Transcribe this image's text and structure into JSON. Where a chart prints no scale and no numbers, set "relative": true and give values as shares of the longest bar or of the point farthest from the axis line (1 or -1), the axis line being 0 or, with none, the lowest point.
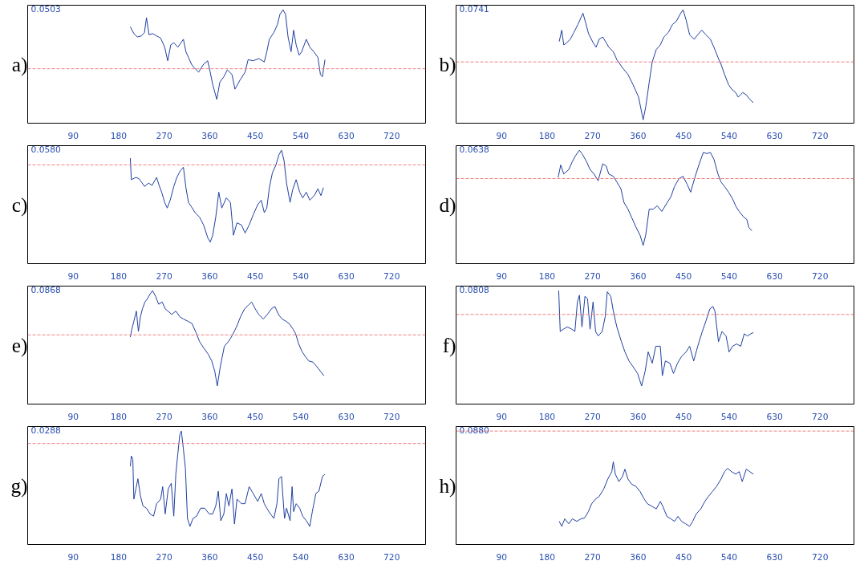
{
  "chart_data": [
    {
      "type": "line",
      "relative": true,
      "xlim": [
        0,
        787
      ],
      "xticks": [
        90,
        180,
        270,
        360,
        450,
        540,
        630,
        720
      ],
      "grid": false,
      "annotations": [
        "0.0503",
        "a)"
      ],
      "ref_lines": [
        {
          "axis": "y",
          "value": 0.48,
          "color": "#f08080",
          "line_style": "dashed"
        }
      ],
      "series": [
        {
          "color": "#1f3f9f",
          "x": [
            203,
            210,
            217,
            225,
            231,
            235,
            240,
            247,
            255,
            263,
            271,
            277,
            283,
            289,
            297,
            308,
            313,
            318,
            324,
            329,
            338,
            348,
            356,
            361,
            366,
            374,
            380,
            388,
            395,
            404,
            410,
            420,
            430,
            436,
            446,
            457,
            468,
            473,
            478,
            487,
            494,
            499,
            505,
            510,
            515,
            521,
            526,
            531,
            537,
            542,
            551,
            558,
            566,
            574,
            579,
            583,
            588
          ],
          "values": [
            0.85,
            0.79,
            0.76,
            0.77,
            0.8,
            0.93,
            0.78,
            0.79,
            0.77,
            0.75,
            0.67,
            0.55,
            0.69,
            0.71,
            0.67,
            0.74,
            0.63,
            0.58,
            0.52,
            0.49,
            0.45,
            0.52,
            0.55,
            0.45,
            0.34,
            0.21,
            0.36,
            0.41,
            0.47,
            0.43,
            0.3,
            0.38,
            0.45,
            0.56,
            0.55,
            0.57,
            0.54,
            0.63,
            0.74,
            0.8,
            0.87,
            0.96,
            1.0,
            0.96,
            0.76,
            0.63,
            0.82,
            0.69,
            0.6,
            0.63,
            0.74,
            0.67,
            0.63,
            0.58,
            0.43,
            0.41,
            0.56
          ]
        }
      ]
    },
    {
      "type": "line",
      "relative": true,
      "xlim": [
        0,
        787
      ],
      "xticks": [
        90,
        180,
        270,
        360,
        450,
        540,
        630,
        720
      ],
      "grid": false,
      "annotations": [
        "0.0741",
        "b)"
      ],
      "ref_lines": [
        {
          "axis": "y",
          "value": 0.54,
          "color": "#f08080",
          "line_style": "dashed"
        }
      ],
      "series": [
        {
          "color": "#1f3f9f",
          "x": [
            204,
            209,
            213,
            219,
            226,
            233,
            241,
            247,
            251,
            256,
            262,
            271,
            277,
            283,
            290,
            297,
            302,
            311,
            318,
            329,
            340,
            350,
            361,
            370,
            375,
            382,
            388,
            396,
            404,
            411,
            420,
            428,
            436,
            443,
            449,
            455,
            462,
            471,
            478,
            486,
            494,
            503,
            510,
            518,
            524,
            531,
            539,
            545,
            553,
            558,
            567,
            574,
            581,
            588
          ],
          "values": [
            0.72,
            0.82,
            0.69,
            0.71,
            0.74,
            0.8,
            0.87,
            0.93,
            0.97,
            0.89,
            0.79,
            0.71,
            0.67,
            0.74,
            0.76,
            0.71,
            0.67,
            0.63,
            0.56,
            0.49,
            0.43,
            0.34,
            0.23,
            0.03,
            0.14,
            0.36,
            0.54,
            0.65,
            0.69,
            0.76,
            0.8,
            0.87,
            0.9,
            0.96,
            1.0,
            0.91,
            0.78,
            0.74,
            0.78,
            0.82,
            0.78,
            0.74,
            0.67,
            0.58,
            0.52,
            0.43,
            0.34,
            0.3,
            0.27,
            0.23,
            0.27,
            0.25,
            0.21,
            0.18
          ]
        }
      ]
    },
    {
      "type": "line",
      "relative": true,
      "xlim": [
        0,
        787
      ],
      "xticks": [
        90,
        180,
        270,
        360,
        450,
        540,
        630,
        720
      ],
      "grid": false,
      "annotations": [
        "0.0580",
        "c)"
      ],
      "ref_lines": [
        {
          "axis": "y",
          "value": 0.87,
          "color": "#f08080",
          "line_style": "dashed"
        }
      ],
      "series": [
        {
          "color": "#1f3f9f",
          "x": [
            203,
            205,
            214,
            220,
            225,
            231,
            239,
            246,
            255,
            260,
            265,
            271,
            276,
            282,
            289,
            295,
            302,
            308,
            313,
            318,
            324,
            331,
            340,
            348,
            356,
            361,
            366,
            372,
            378,
            384,
            393,
            401,
            407,
            414,
            423,
            430,
            438,
            446,
            455,
            462,
            468,
            473,
            478,
            484,
            491,
            497,
            502,
            507,
            512,
            519,
            524,
            531,
            538,
            544,
            551,
            558,
            567,
            574,
            580,
            585
          ],
          "values": [
            0.93,
            0.74,
            0.76,
            0.75,
            0.72,
            0.68,
            0.71,
            0.69,
            0.76,
            0.69,
            0.63,
            0.54,
            0.49,
            0.56,
            0.68,
            0.76,
            0.82,
            0.85,
            0.67,
            0.54,
            0.5,
            0.45,
            0.41,
            0.34,
            0.23,
            0.19,
            0.25,
            0.41,
            0.63,
            0.49,
            0.58,
            0.54,
            0.25,
            0.36,
            0.34,
            0.27,
            0.34,
            0.43,
            0.52,
            0.56,
            0.45,
            0.49,
            0.67,
            0.8,
            0.87,
            0.96,
            1.0,
            0.91,
            0.71,
            0.54,
            0.65,
            0.74,
            0.63,
            0.58,
            0.63,
            0.56,
            0.6,
            0.66,
            0.6,
            0.67
          ]
        }
      ]
    },
    {
      "type": "line",
      "relative": true,
      "xlim": [
        0,
        787
      ],
      "xticks": [
        90,
        180,
        270,
        360,
        450,
        540,
        630,
        720
      ],
      "grid": false,
      "annotations": [
        "0.0638",
        "d)"
      ],
      "ref_lines": [
        {
          "axis": "y",
          "value": 0.75,
          "color": "#f08080",
          "line_style": "dashed"
        }
      ],
      "series": [
        {
          "color": "#1f3f9f",
          "x": [
            202,
            207,
            213,
            223,
            230,
            236,
            244,
            249,
            258,
            265,
            273,
            281,
            290,
            297,
            302,
            311,
            318,
            326,
            332,
            340,
            347,
            356,
            364,
            370,
            375,
            382,
            390,
            398,
            407,
            415,
            425,
            432,
            441,
            449,
            457,
            464,
            473,
            481,
            489,
            496,
            503,
            510,
            518,
            524,
            531,
            539,
            547,
            554,
            560,
            569,
            575,
            579,
            585
          ],
          "values": [
            0.76,
            0.87,
            0.79,
            0.83,
            0.9,
            0.95,
            1.0,
            0.97,
            0.9,
            0.83,
            0.79,
            0.73,
            0.88,
            0.86,
            0.79,
            0.77,
            0.72,
            0.66,
            0.54,
            0.48,
            0.41,
            0.32,
            0.25,
            0.16,
            0.25,
            0.48,
            0.48,
            0.51,
            0.46,
            0.52,
            0.59,
            0.68,
            0.75,
            0.77,
            0.7,
            0.63,
            0.77,
            0.88,
            0.98,
            0.97,
            0.98,
            0.92,
            0.79,
            0.72,
            0.68,
            0.63,
            0.57,
            0.5,
            0.46,
            0.41,
            0.39,
            0.32,
            0.29
          ]
        }
      ]
    },
    {
      "type": "line",
      "relative": true,
      "xlim": [
        0,
        787
      ],
      "xticks": [
        90,
        180,
        270,
        360,
        450,
        540,
        630,
        720
      ],
      "grid": false,
      "annotations": [
        "0.0868",
        "e)"
      ],
      "ref_lines": [
        {
          "axis": "y",
          "value": 0.61,
          "color": "#f08080",
          "line_style": "dashed"
        }
      ],
      "series": [
        {
          "color": "#1f3f9f",
          "x": [
            203,
            206,
            210,
            215,
            219,
            223,
            227,
            232,
            237,
            242,
            247,
            253,
            259,
            266,
            272,
            280,
            285,
            293,
            301,
            308,
            317,
            325,
            333,
            340,
            349,
            357,
            364,
            370,
            375,
            381,
            389,
            397,
            404,
            413,
            421,
            429,
            436,
            443,
            450,
            457,
            466,
            474,
            482,
            489,
            496,
            503,
            511,
            517,
            525,
            530,
            536,
            543,
            549,
            556,
            564,
            572,
            579,
            586
          ],
          "values": [
            0.59,
            0.66,
            0.73,
            0.82,
            0.64,
            0.77,
            0.84,
            0.9,
            0.93,
            0.97,
            1.0,
            0.95,
            0.88,
            0.9,
            0.84,
            0.81,
            0.79,
            0.82,
            0.77,
            0.75,
            0.73,
            0.71,
            0.63,
            0.55,
            0.49,
            0.44,
            0.38,
            0.29,
            0.16,
            0.33,
            0.51,
            0.55,
            0.6,
            0.68,
            0.77,
            0.84,
            0.87,
            0.9,
            0.84,
            0.79,
            0.75,
            0.79,
            0.84,
            0.86,
            0.79,
            0.75,
            0.73,
            0.71,
            0.66,
            0.62,
            0.53,
            0.46,
            0.42,
            0.38,
            0.37,
            0.33,
            0.29,
            0.25
          ]
        }
      ]
    },
    {
      "type": "line",
      "relative": true,
      "xlim": [
        0,
        787
      ],
      "xticks": [
        90,
        180,
        270,
        360,
        450,
        540,
        630,
        720
      ],
      "grid": false,
      "annotations": [
        "0.0808",
        "f)"
      ],
      "ref_lines": [
        {
          "axis": "y",
          "value": 0.79,
          "color": "#f08080",
          "line_style": "dashed"
        }
      ],
      "series": [
        {
          "color": "#1f3f9f",
          "x": [
            203,
            206,
            212,
            220,
            229,
            235,
            240,
            244,
            249,
            255,
            260,
            265,
            271,
            276,
            281,
            289,
            295,
            299,
            306,
            311,
            318,
            327,
            334,
            342,
            350,
            359,
            367,
            374,
            380,
            388,
            395,
            404,
            408,
            414,
            423,
            430,
            438,
            446,
            455,
            462,
            470,
            478,
            487,
            494,
            502,
            508,
            512,
            519,
            526,
            534,
            540,
            547,
            555,
            563,
            570,
            576,
            583,
            588
          ],
          "values": [
            1.0,
            0.64,
            0.66,
            0.68,
            0.66,
            0.64,
            0.9,
            0.96,
            0.68,
            0.95,
            0.93,
            0.66,
            0.9,
            0.64,
            0.6,
            0.64,
            0.77,
            0.99,
            0.95,
            0.82,
            0.68,
            0.55,
            0.46,
            0.38,
            0.33,
            0.27,
            0.16,
            0.29,
            0.46,
            0.36,
            0.51,
            0.51,
            0.25,
            0.38,
            0.36,
            0.27,
            0.36,
            0.42,
            0.46,
            0.51,
            0.38,
            0.51,
            0.64,
            0.73,
            0.84,
            0.86,
            0.82,
            0.55,
            0.64,
            0.6,
            0.46,
            0.51,
            0.53,
            0.51,
            0.62,
            0.6,
            0.62,
            0.63
          ]
        }
      ]
    },
    {
      "type": "line",
      "relative": true,
      "xlim": [
        0,
        787
      ],
      "xticks": [
        90,
        180,
        270,
        360,
        450,
        540,
        630,
        720
      ],
      "grid": false,
      "annotations": [
        "0.0288",
        "g)"
      ],
      "ref_lines": [
        {
          "axis": "y",
          "value": 0.89,
          "color": "#f08080",
          "line_style": "dashed"
        }
      ],
      "series": [
        {
          "color": "#1f3f9f",
          "x": [
            203,
            205,
            208,
            210,
            214,
            218,
            223,
            228,
            235,
            242,
            249,
            255,
            263,
            267,
            272,
            278,
            284,
            289,
            293,
            297,
            301,
            304,
            308,
            312,
            316,
            321,
            327,
            334,
            342,
            350,
            359,
            366,
            372,
            377,
            382,
            388,
            393,
            398,
            404,
            409,
            414,
            423,
            430,
            438,
            446,
            455,
            462,
            468,
            473,
            480,
            487,
            493,
            497,
            502,
            508,
            512,
            519,
            523,
            526,
            531,
            538,
            544,
            551,
            558,
            563,
            570,
            576,
            583,
            588
          ],
          "values": [
            0.69,
            0.78,
            0.75,
            0.4,
            0.49,
            0.58,
            0.43,
            0.34,
            0.32,
            0.27,
            0.25,
            0.36,
            0.4,
            0.51,
            0.27,
            0.49,
            0.54,
            0.25,
            0.62,
            0.8,
            0.97,
            1.0,
            0.84,
            0.67,
            0.23,
            0.16,
            0.23,
            0.25,
            0.32,
            0.32,
            0.27,
            0.27,
            0.34,
            0.47,
            0.21,
            0.27,
            0.45,
            0.34,
            0.49,
            0.18,
            0.4,
            0.36,
            0.36,
            0.51,
            0.45,
            0.38,
            0.45,
            0.36,
            0.32,
            0.27,
            0.23,
            0.36,
            0.58,
            0.6,
            0.23,
            0.32,
            0.21,
            0.51,
            0.29,
            0.36,
            0.32,
            0.25,
            0.21,
            0.16,
            0.29,
            0.45,
            0.47,
            0.6,
            0.62
          ]
        }
      ]
    },
    {
      "type": "line",
      "relative": true,
      "xlim": [
        0,
        787
      ],
      "xticks": [
        90,
        180,
        270,
        360,
        450,
        540,
        630,
        720
      ],
      "grid": false,
      "annotations": [
        "0.0880",
        "h)"
      ],
      "ref_lines": [
        {
          "axis": "y",
          "value": 1.37,
          "color": "#f08080",
          "line_style": "dashed"
        }
      ],
      "series": [
        {
          "color": "#1f3f9f",
          "x": [
            204,
            209,
            215,
            223,
            230,
            239,
            247,
            254,
            262,
            268,
            276,
            283,
            292,
            300,
            308,
            311,
            315,
            322,
            329,
            334,
            340,
            347,
            356,
            364,
            372,
            379,
            388,
            396,
            404,
            409,
            417,
            425,
            432,
            439,
            446,
            454,
            462,
            468,
            475,
            484,
            492,
            499,
            507,
            515,
            524,
            531,
            537,
            545,
            553,
            560,
            566,
            574,
            581,
            588
          ],
          "values": [
            0.28,
            0.22,
            0.31,
            0.25,
            0.31,
            0.28,
            0.31,
            0.32,
            0.4,
            0.49,
            0.55,
            0.58,
            0.67,
            0.79,
            0.88,
            1.0,
            0.85,
            0.76,
            0.82,
            0.91,
            0.79,
            0.73,
            0.7,
            0.64,
            0.55,
            0.49,
            0.46,
            0.43,
            0.52,
            0.46,
            0.34,
            0.31,
            0.28,
            0.34,
            0.28,
            0.25,
            0.22,
            0.28,
            0.37,
            0.43,
            0.52,
            0.58,
            0.64,
            0.7,
            0.79,
            0.88,
            0.92,
            0.88,
            0.85,
            0.88,
            0.76,
            0.91,
            0.88,
            0.85
          ]
        }
      ]
    }
  ]
}
